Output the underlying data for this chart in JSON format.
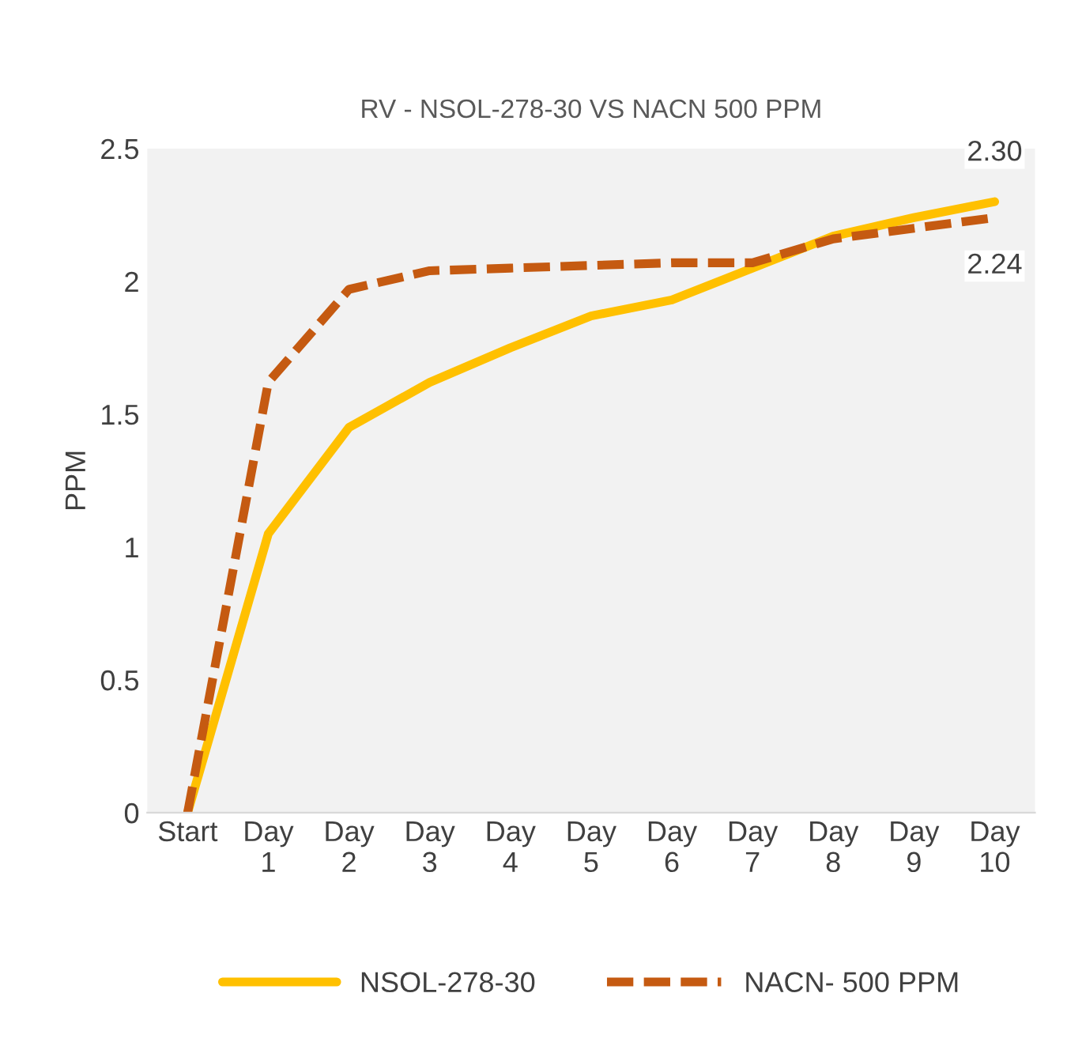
{
  "chart_data": {
    "type": "line",
    "title": "RV - NSOL-278-30 VS NACN 500 PPM",
    "ylabel": "PPM",
    "categories": [
      "Start",
      "Day 1",
      "Day 2",
      "Day 3",
      "Day 4",
      "Day 5",
      "Day 6",
      "Day 7",
      "Day 8",
      "Day 9",
      "Day 10"
    ],
    "series": [
      {
        "name": "NSOL-278-30",
        "color": "#ffc000",
        "line_style": "solid",
        "values": [
          0,
          1.05,
          1.45,
          1.62,
          1.75,
          1.87,
          1.93,
          2.05,
          2.17,
          2.24,
          2.3
        ],
        "value_labels": [
          null,
          null,
          null,
          null,
          null,
          null,
          null,
          null,
          null,
          null,
          "2.30"
        ]
      },
      {
        "name": "NACN- 500 PPM",
        "color": "#c55a11",
        "line_style": "dashed",
        "values": [
          0,
          1.62,
          1.97,
          2.04,
          2.05,
          2.06,
          2.07,
          2.07,
          2.16,
          2.2,
          2.24
        ],
        "value_labels": [
          null,
          null,
          null,
          null,
          null,
          null,
          null,
          null,
          null,
          null,
          "2.24"
        ]
      }
    ],
    "ylim": [
      0,
      2.5
    ],
    "yticks": [
      0,
      0.5,
      1,
      1.5,
      2,
      2.5
    ],
    "grid": false,
    "legend": "bottom",
    "marker": "none"
  }
}
